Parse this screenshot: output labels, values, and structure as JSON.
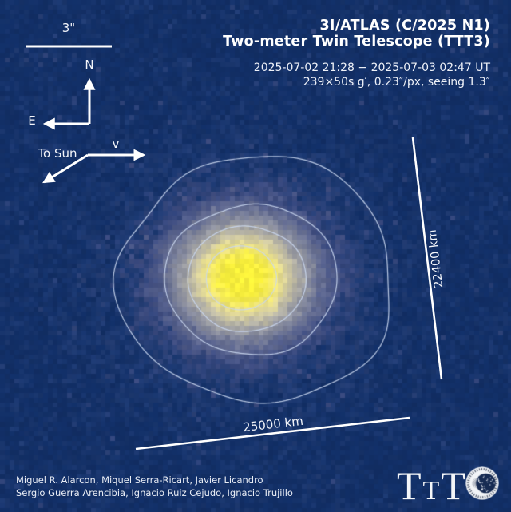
{
  "header": {
    "title_line1": "3I/ATLAS (C/2025 N1)",
    "title_line2": "Two-meter Twin Telescope (TTT3)",
    "obs_window": "2025-07-02 21:28 − 2025-07-03 02:47 UT",
    "obs_details": "239×50s g′, 0.23″/px, seeing 1.3″"
  },
  "annotations": {
    "scale_bar": "3\"",
    "north": "N",
    "east": "E",
    "velocity": "v",
    "to_sun": "To Sun",
    "extent_vertical": "22400 km",
    "extent_horizontal": "25000 km"
  },
  "credits": {
    "line1": "Miguel R. Alarcon, Miquel Serra-Ricart, Javier Licandro",
    "line2": "Sergio Guerra Arencibia, Ignacio Ruiz Cejudo, Ignacio Trujillo"
  },
  "logos": {
    "ttt": {
      "t1": "T",
      "t2": "T",
      "t3": "T"
    },
    "iac_seal": "iac-observatory-seal"
  },
  "colors": {
    "background": "#122f66",
    "comet_core": "#f9f03c",
    "contour": "#cbd8f0",
    "text": "#ffffff"
  }
}
